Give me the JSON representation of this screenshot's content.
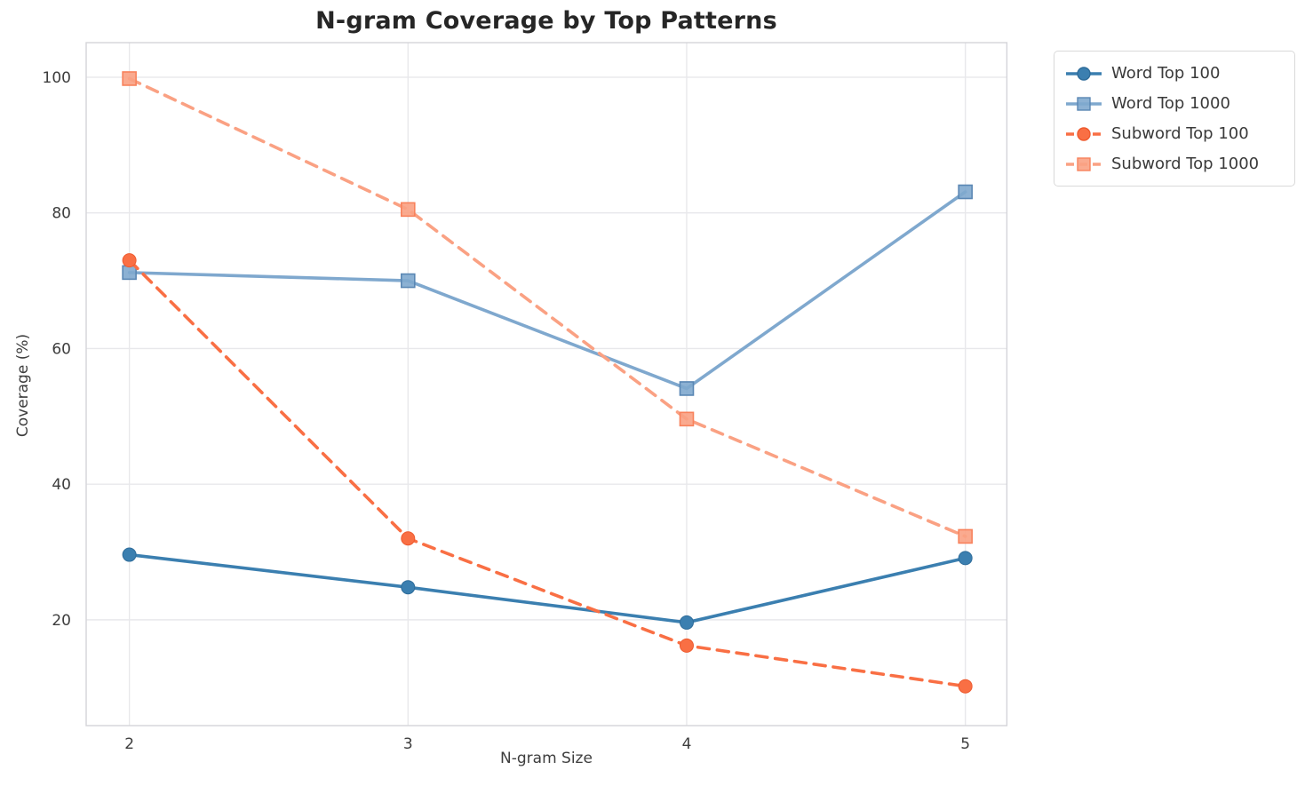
{
  "title": "N-gram Coverage by Top Patterns",
  "axes": {
    "xlabel": "N-gram Size",
    "ylabel": "Coverage (%)",
    "x_ticks": [
      2,
      3,
      4,
      5
    ],
    "y_ticks": [
      20,
      40,
      60,
      80,
      100
    ]
  },
  "colors": {
    "grid": "#e8e8eb",
    "spine": "#d4d4d9",
    "tick_text": "#3d3d3d",
    "title_text": "#262626",
    "word_100": "#3b7fb0",
    "word_1000": "#7fa8ce",
    "subword_100": "#f96f44",
    "subword_1000": "#faa183"
  },
  "chart_data": {
    "type": "line",
    "title": "N-gram Coverage by Top Patterns",
    "xlabel": "N-gram Size",
    "ylabel": "Coverage (%)",
    "x": [
      2,
      3,
      4,
      5
    ],
    "xlim": [
      1.845,
      5.149
    ],
    "ylim": [
      4.4,
      105.1
    ],
    "grid": true,
    "legend_position": "outside upper right",
    "series": [
      {
        "name": "Word Top 100",
        "values": [
          29.6,
          24.8,
          19.6,
          29.1
        ],
        "color": "#3b7fb0",
        "edge": "#2e6c9a",
        "style": "solid",
        "marker": "circle"
      },
      {
        "name": "Word Top 1000",
        "values": [
          71.2,
          70.0,
          54.1,
          83.1
        ],
        "color": "#7fa8ce",
        "edge": "#5a87b4",
        "style": "solid",
        "marker": "square"
      },
      {
        "name": "Subword Top 100",
        "values": [
          73.0,
          32.0,
          16.2,
          10.2
        ],
        "color": "#f96f44",
        "edge": "#ee5a2e",
        "style": "dashed",
        "marker": "circle"
      },
      {
        "name": "Subword Top 1000",
        "values": [
          99.8,
          80.5,
          49.6,
          32.3
        ],
        "color": "#faa183",
        "edge": "#f8825c",
        "style": "dashed",
        "marker": "square"
      }
    ]
  }
}
